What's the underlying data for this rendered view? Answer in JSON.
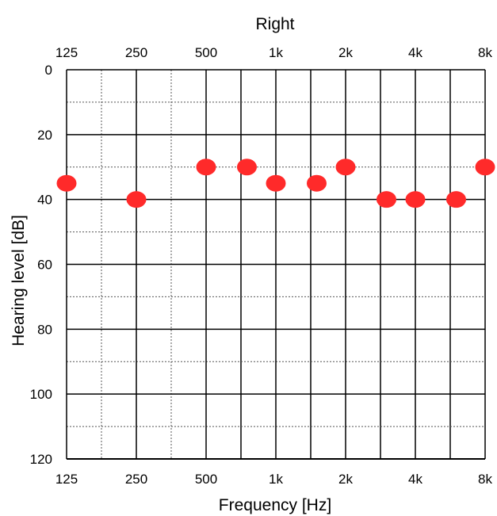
{
  "chart_data": {
    "type": "scatter",
    "title": "Right",
    "xlabel": "Frequency [Hz]",
    "ylabel": "Hearing level [dB]",
    "x_scale": "log2",
    "y_inverted": true,
    "xlim": [
      125,
      8000
    ],
    "ylim": [
      0,
      120
    ],
    "x_ticks": [
      {
        "value": 125,
        "label": "125"
      },
      {
        "value": 250,
        "label": "250"
      },
      {
        "value": 500,
        "label": "500"
      },
      {
        "value": 1000,
        "label": "1k"
      },
      {
        "value": 2000,
        "label": "2k"
      },
      {
        "value": 4000,
        "label": "4k"
      },
      {
        "value": 8000,
        "label": "8k"
      }
    ],
    "y_ticks": [
      {
        "value": 0,
        "label": "0"
      },
      {
        "value": 20,
        "label": "20"
      },
      {
        "value": 40,
        "label": "40"
      },
      {
        "value": 60,
        "label": "60"
      },
      {
        "value": 80,
        "label": "80"
      },
      {
        "value": 100,
        "label": "100"
      },
      {
        "value": 120,
        "label": "120"
      }
    ],
    "grid": true,
    "marker_color": "#ff2a2a",
    "series": [
      {
        "points": [
          {
            "x": 125,
            "y": 35
          },
          {
            "x": 250,
            "y": 40
          },
          {
            "x": 500,
            "y": 30
          },
          {
            "x": 750,
            "y": 30
          },
          {
            "x": 1000,
            "y": 35
          },
          {
            "x": 1500,
            "y": 35
          },
          {
            "x": 2000,
            "y": 30
          },
          {
            "x": 3000,
            "y": 40
          },
          {
            "x": 4000,
            "y": 40
          },
          {
            "x": 6000,
            "y": 40
          },
          {
            "x": 8000,
            "y": 30
          }
        ]
      }
    ]
  }
}
